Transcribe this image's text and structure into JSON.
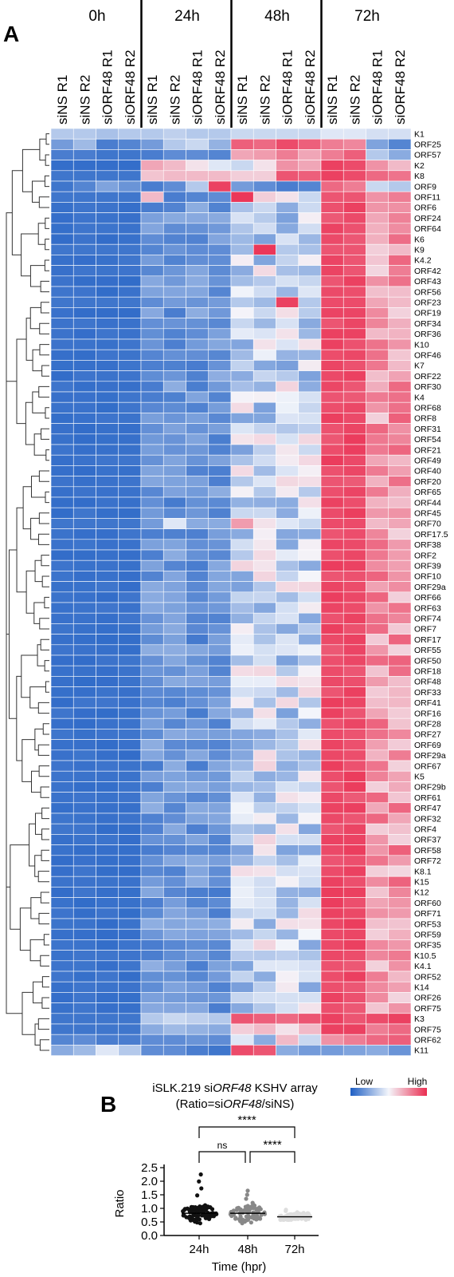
{
  "panel_a": {
    "letter": "A",
    "groups": [
      "0h",
      "24h",
      "48h",
      "72h"
    ],
    "columns": [
      "siNS R1",
      "siNS R2",
      "siORF48 R1",
      "siORF48 R2"
    ],
    "legend": {
      "low": "Low",
      "high": "High"
    },
    "colors": {
      "low": "#1f5fc4",
      "mid": "#f4f6fb",
      "high": "#ea2d50"
    }
  },
  "panel_b": {
    "letter": "B",
    "title_prefix": "iSLK.219 si",
    "title_italic": "ORF48",
    "title_suffix": " KSHV array",
    "subtitle_prefix": "(Ratio=si",
    "subtitle_italic": "ORF48",
    "subtitle_suffix": "/siNS)",
    "significance": {
      "overall": "****",
      "pair_24_48": "ns",
      "pair_48_72": "****"
    },
    "colors": {
      "24h": "#111111",
      "48h": "#888888",
      "72h": "#dddddd"
    }
  },
  "chart_data": [
    {
      "type": "heatmap",
      "title": "",
      "groups": [
        "0h",
        "24h",
        "48h",
        "72h"
      ],
      "columns": [
        "0h siNS R1",
        "0h siNS R2",
        "0h siORF48 R1",
        "0h siORF48 R2",
        "24h siNS R1",
        "24h siNS R2",
        "24h siORF48 R1",
        "24h siORF48 R2",
        "48h siNS R1",
        "48h siNS R2",
        "48h siORF48 R1",
        "48h siORF48 R2",
        "72h siNS R1",
        "72h siNS R2",
        "72h siORF48 R1",
        "72h siORF48 R2"
      ],
      "rows": [
        "K1",
        "ORF25",
        "ORF57",
        "K2",
        "K8",
        "ORF9",
        "ORF11",
        "ORF6",
        "ORF24",
        "ORF64",
        "K6",
        "K9",
        "K4.2",
        "ORF42",
        "ORF43",
        "ORF56",
        "ORF23",
        "ORF19",
        "ORF34",
        "ORF36",
        "K10",
        "ORF46",
        "K7",
        "ORF22",
        "ORF30",
        "K4",
        "ORF68",
        "ORF8",
        "ORF31",
        "ORF54",
        "ORF21",
        "ORF49",
        "ORF40",
        "ORF20",
        "ORF65",
        "ORF44",
        "ORF45",
        "ORF70",
        "ORF17.5",
        "ORF38",
        "ORF2",
        "ORF39",
        "ORF10",
        "ORF29a",
        "ORF66",
        "ORF63",
        "ORF74",
        "ORF7",
        "ORF17",
        "ORF55",
        "ORF50",
        "ORF18",
        "ORF48",
        "ORF33",
        "ORF41",
        "ORF16",
        "ORF28",
        "ORF27",
        "ORF69",
        "ORF29a",
        "ORF67",
        "K5",
        "ORF29b",
        "ORF61",
        "ORF47",
        "ORF32",
        "ORF4",
        "ORF37",
        "ORF58",
        "ORF72",
        "K8.1",
        "K15",
        "K12",
        "ORF60",
        "ORF71",
        "ORF53",
        "ORF59",
        "ORF35",
        "K10.5",
        "K4.1",
        "ORF52",
        "K14",
        "ORF26",
        "ORF75",
        "K3",
        "ORF75",
        "ORF62",
        "K11"
      ],
      "value_scale": "relative expression, -1 = Low (blue), 0 = white, 1 = High (red)",
      "special_values": {
        "K1": [
          -0.3,
          -0.3,
          -0.35,
          -0.3,
          -0.3,
          -0.25,
          -0.3,
          -0.3,
          -0.2,
          -0.2,
          -0.2,
          -0.2,
          -0.1,
          -0.1,
          -0.15,
          -0.15
        ],
        "ORF25": [
          -0.6,
          -0.4,
          -0.8,
          -0.75,
          -0.6,
          -0.3,
          -0.2,
          -0.45,
          0.75,
          0.7,
          0.85,
          0.75,
          0.6,
          0.55,
          -0.55,
          -0.75
        ],
        "ORF57": [
          -0.8,
          -0.8,
          -0.85,
          -0.85,
          -0.8,
          -0.7,
          -0.7,
          -0.75,
          0.4,
          0.45,
          0.6,
          0.4,
          0.6,
          0.75,
          -0.3,
          -0.5
        ],
        "K2": [
          -0.9,
          -0.9,
          -0.9,
          -0.9,
          0.4,
          0.3,
          0.1,
          -0.1,
          -0.2,
          0.1,
          0.5,
          0.4,
          0.9,
          0.85,
          0.5,
          0.3
        ],
        "K8": [
          -0.85,
          -0.85,
          -0.85,
          -0.85,
          0.25,
          0.3,
          0.3,
          0.3,
          0.2,
          0.2,
          0.8,
          0.75,
          0.9,
          0.85,
          0.7,
          0.65
        ],
        "ORF9": [
          -0.85,
          -0.75,
          -0.55,
          -0.65,
          -0.8,
          -0.7,
          -0.3,
          0.9,
          -0.6,
          -0.7,
          -0.8,
          -0.75,
          0.7,
          0.6,
          -0.2,
          -0.3
        ],
        "ORF11": [
          -0.85,
          -0.85,
          -0.85,
          -0.85,
          0.3,
          -0.8,
          -0.75,
          -0.7,
          0.95,
          0.2,
          0.1,
          -0.2,
          0.8,
          0.8,
          0.5,
          0.6
        ],
        "K9": [
          -0.85,
          -0.85,
          -0.85,
          -0.85,
          -0.75,
          -0.65,
          -0.7,
          -0.7,
          -0.4,
          0.95,
          -0.3,
          -0.35,
          0.8,
          0.8,
          0.2,
          0.3
        ],
        "ORF23": [
          -0.85,
          -0.85,
          -0.85,
          -0.85,
          -0.7,
          -0.6,
          -0.65,
          -0.6,
          -0.3,
          -0.4,
          0.9,
          -0.3,
          0.85,
          0.85,
          0.4,
          0.3
        ],
        "ORF70": [
          -0.85,
          -0.85,
          -0.85,
          -0.85,
          -0.6,
          -0.1,
          -0.5,
          -0.5,
          0.45,
          0.1,
          -0.1,
          -0.2,
          0.85,
          0.85,
          0.3,
          0.4
        ],
        "K3": [
          -0.85,
          -0.85,
          -0.85,
          -0.85,
          -0.3,
          -0.2,
          -0.25,
          -0.3,
          0.8,
          0.75,
          0.7,
          0.8,
          0.9,
          0.8,
          0.85,
          0.9
        ],
        "ORF75": [
          -0.85,
          -0.85,
          -0.85,
          -0.85,
          -0.5,
          -0.4,
          -0.45,
          -0.5,
          0.2,
          0.3,
          0.1,
          0.3,
          0.9,
          0.9,
          0.6,
          0.7
        ],
        "ORF62": [
          -0.75,
          -0.7,
          -0.8,
          -0.8,
          -0.7,
          -0.7,
          -0.65,
          -0.7,
          -0.1,
          -0.5,
          0.3,
          -0.2,
          0.5,
          0.6,
          0.7,
          0.75
        ],
        "K11": [
          -0.5,
          -0.4,
          -0.1,
          -0.3,
          -0.7,
          -0.7,
          -0.8,
          -0.85,
          0.85,
          0.8,
          -0.5,
          -0.6,
          -0.6,
          -0.55,
          -0.5,
          -0.65
        ]
      },
      "default_profile": {
        "0h": -0.88,
        "24h": -0.65,
        "48h": -0.2,
        "72h_siNS": 0.85,
        "72h_siORF48": 0.45
      },
      "legend": {
        "low": "Low",
        "high": "High"
      }
    },
    {
      "type": "scatter",
      "title": "iSLK.219 siORF48 KSHV array",
      "subtitle": "(Ratio=siORF48/siNS)",
      "xlabel": "Time (hpr)",
      "ylabel": "Ratio",
      "categories": [
        "24h",
        "48h",
        "72h"
      ],
      "ylim": [
        0,
        2.5
      ],
      "yticks": [
        0,
        0.5,
        1.0,
        1.5,
        2.0,
        2.5
      ],
      "medians": [
        0.82,
        0.82,
        0.69
      ],
      "point_counts": [
        88,
        88,
        88
      ],
      "ranges": [
        [
          0.45,
          2.25
        ],
        [
          0.45,
          1.65
        ],
        [
          0.58,
          0.95
        ]
      ],
      "significance": [
        {
          "pair": [
            "24h",
            "72h"
          ],
          "label": "****"
        },
        {
          "pair": [
            "24h",
            "48h"
          ],
          "label": "ns"
        },
        {
          "pair": [
            "48h",
            "72h"
          ],
          "label": "****"
        }
      ]
    }
  ]
}
